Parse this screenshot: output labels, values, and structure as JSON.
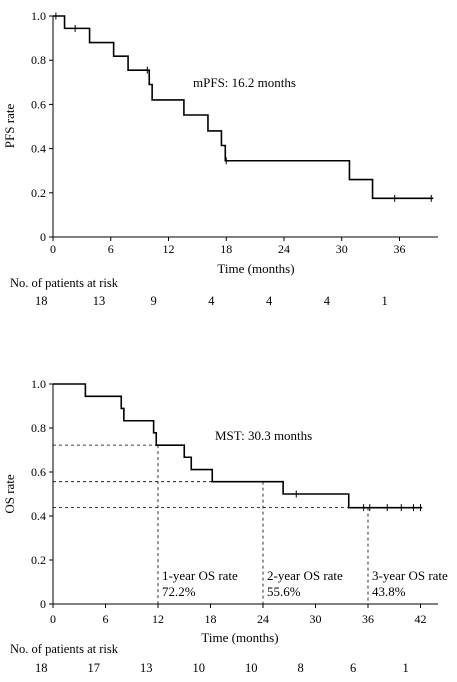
{
  "chart_data": [
    {
      "type": "line",
      "subtype": "kaplan-meier",
      "ylabel": "PFS rate",
      "xlabel": "Time (months)",
      "xlim": [
        0,
        40
      ],
      "ylim": [
        0,
        1.0
      ],
      "x_ticks": [
        0,
        6,
        12,
        18,
        24,
        30,
        36
      ],
      "y_ticks": [
        "0",
        "0.2",
        "0.4",
        "0.6",
        "0.8",
        "1.0"
      ],
      "annotation": "mPFS: 16.2 months",
      "series": [
        {
          "steps": [
            [
              0,
              1.0
            ],
            [
              1.2,
              0.944
            ],
            [
              3.8,
              0.88
            ],
            [
              6.3,
              0.818
            ],
            [
              7.8,
              0.755
            ],
            [
              10.0,
              0.69
            ],
            [
              10.3,
              0.62
            ],
            [
              13.6,
              0.552
            ],
            [
              16.1,
              0.48
            ],
            [
              17.5,
              0.414
            ],
            [
              17.9,
              0.345
            ],
            [
              30.8,
              0.26
            ],
            [
              33.2,
              0.175
            ],
            [
              39.5,
              0.175
            ]
          ],
          "censored": [
            [
              0.3,
              1.0
            ],
            [
              2.3,
              0.944
            ],
            [
              9.8,
              0.755
            ],
            [
              18.0,
              0.345
            ],
            [
              35.5,
              0.175
            ],
            [
              39.3,
              0.175
            ]
          ]
        }
      ],
      "risk_table": {
        "label": "No. of patients at risk",
        "values": [
          "18",
          "13",
          "9",
          "4",
          "4",
          "4",
          "1"
        ]
      }
    },
    {
      "type": "line",
      "subtype": "kaplan-meier",
      "ylabel": "OS rate",
      "xlabel": "Time (months)",
      "xlim": [
        0,
        44
      ],
      "ylim": [
        0,
        1.0
      ],
      "x_ticks": [
        0,
        6,
        12,
        18,
        24,
        30,
        36,
        42
      ],
      "y_ticks": [
        "0",
        "0.2",
        "0.4",
        "0.6",
        "0.8",
        "1.0"
      ],
      "annotation": "MST: 30.3 months",
      "reference_rates": [
        {
          "label": "1-year OS rate",
          "value": "72.2%",
          "x": 12,
          "y": 0.722
        },
        {
          "label": "2-year OS rate",
          "value": "55.6%",
          "x": 24,
          "y": 0.556
        },
        {
          "label": "3-year OS rate",
          "value": "43.8%",
          "x": 36,
          "y": 0.438
        }
      ],
      "series": [
        {
          "steps": [
            [
              0,
              1.0
            ],
            [
              3.7,
              0.944
            ],
            [
              7.8,
              0.889
            ],
            [
              8.1,
              0.833
            ],
            [
              11.5,
              0.778
            ],
            [
              11.8,
              0.722
            ],
            [
              15.0,
              0.667
            ],
            [
              15.8,
              0.611
            ],
            [
              18.2,
              0.556
            ],
            [
              26.3,
              0.5
            ],
            [
              33.8,
              0.438
            ],
            [
              42.2,
              0.438
            ]
          ],
          "censored": [
            [
              27.8,
              0.5
            ],
            [
              35.5,
              0.438
            ],
            [
              36.2,
              0.438
            ],
            [
              38.2,
              0.438
            ],
            [
              39.8,
              0.438
            ],
            [
              41.2,
              0.438
            ],
            [
              42.0,
              0.438
            ]
          ]
        }
      ],
      "risk_table": {
        "label": "No. of patients at risk",
        "values": [
          "18",
          "17",
          "13",
          "10",
          "10",
          "8",
          "6",
          "1"
        ]
      }
    }
  ]
}
